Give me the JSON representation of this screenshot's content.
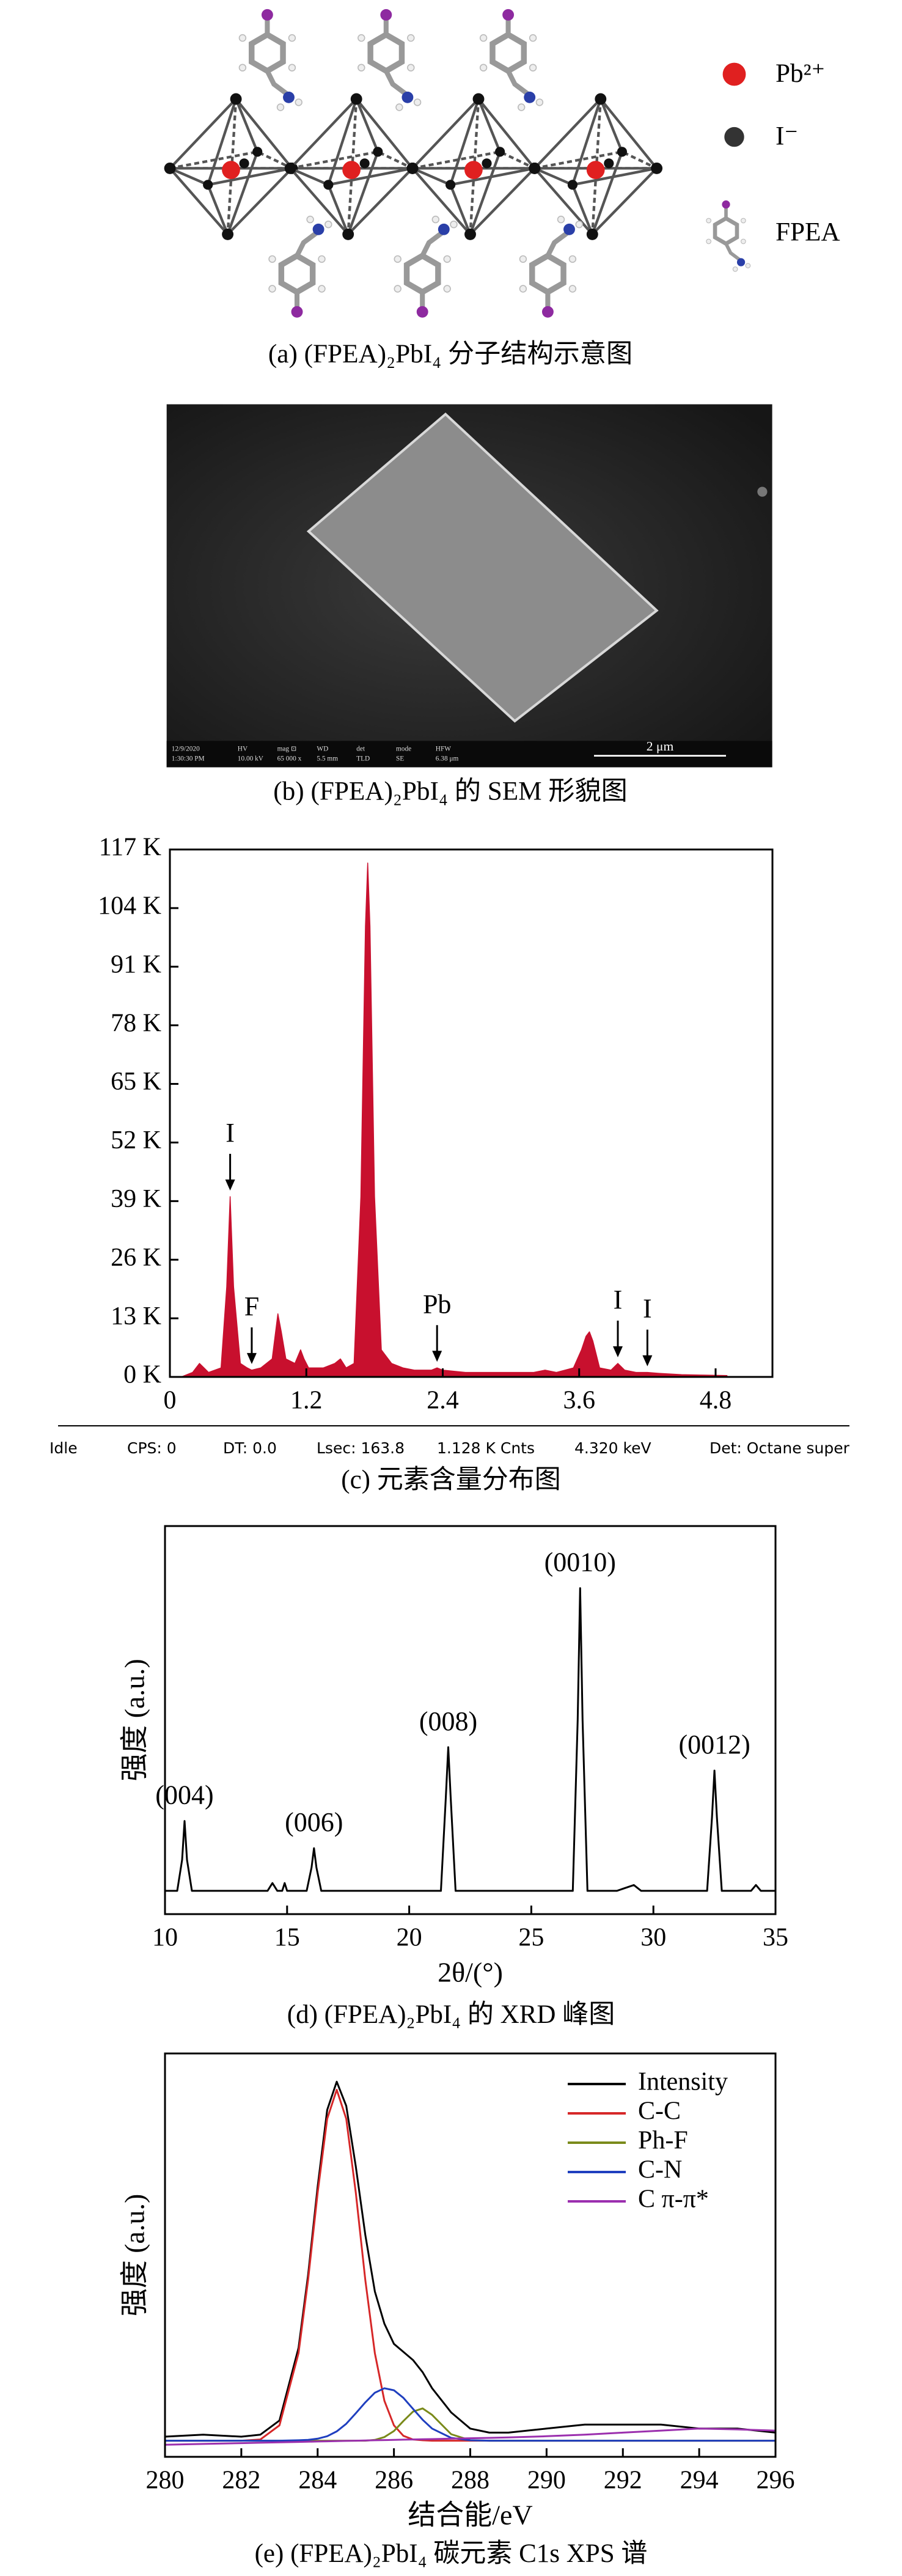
{
  "panel_a": {
    "legend": [
      "Pb²⁺",
      "I⁻",
      "FPEA"
    ],
    "caption": "(a) (FPEA)₂PbI₄ 分子结构示意图"
  },
  "panel_b": {
    "scale_bar": "2 μm",
    "info_bar": [
      "12/9/2020",
      "1:30:30 PM",
      "HV",
      "10.00 kV",
      "mag ⊡",
      "65 000 x",
      "WD",
      "5.5 mm",
      "det",
      "TLD",
      "mode",
      "SE",
      "HFW",
      "6.38 μm"
    ],
    "caption": "(b) (FPEA)₂PbI₄ 的 SEM 形貌图"
  },
  "chart_data": [
    {
      "type": "area",
      "color": "#c8102e",
      "x": [
        0.1,
        0.2,
        0.26,
        0.3,
        0.34,
        0.45,
        0.5,
        0.53,
        0.56,
        0.62,
        0.68,
        0.72,
        0.8,
        0.9,
        0.95,
        0.98,
        1.02,
        1.1,
        1.15,
        1.18,
        1.22,
        1.35,
        1.45,
        1.5,
        1.55,
        1.62,
        1.68,
        1.72,
        1.74,
        1.76,
        1.8,
        1.86,
        1.95,
        2.05,
        2.15,
        2.3,
        2.35,
        2.4,
        2.6,
        2.9,
        3.2,
        3.3,
        3.4,
        3.55,
        3.62,
        3.66,
        3.69,
        3.72,
        3.78,
        3.88,
        3.94,
        4.0,
        4.1,
        4.2,
        4.3,
        4.5,
        4.7,
        4.9
      ],
      "values": [
        0,
        1,
        3,
        2,
        1,
        2,
        20,
        40,
        20,
        3,
        2,
        1.5,
        2,
        4,
        14,
        10,
        4,
        3,
        6,
        4,
        2,
        2,
        3,
        4,
        2,
        3,
        40,
        100,
        114,
        100,
        40,
        6,
        3,
        2,
        1.5,
        1.5,
        2,
        1.5,
        1,
        1,
        1,
        1.5,
        1,
        2,
        6,
        9,
        10,
        8,
        2,
        1.5,
        3,
        1.5,
        1,
        1,
        0.8,
        0.5,
        0.4,
        0.3
      ],
      "xlim": [
        0,
        5.3
      ],
      "xticks": [
        0,
        1.2,
        2.4,
        3.6,
        4.8
      ],
      "ylim": [
        0,
        117
      ],
      "yticks": [
        {
          "value": 0,
          "label": "0 K"
        },
        {
          "value": 13,
          "label": "13 K"
        },
        {
          "value": 26,
          "label": "26 K"
        },
        {
          "value": 39,
          "label": "39 K"
        },
        {
          "value": 52,
          "label": "52 K"
        },
        {
          "value": 65,
          "label": "65 K"
        },
        {
          "value": 78,
          "label": "78 K"
        },
        {
          "value": 91,
          "label": "91 K"
        },
        {
          "value": 104,
          "label": "104 K"
        },
        {
          "value": 117,
          "label": "117 K"
        }
      ],
      "annotations": [
        {
          "text": "I",
          "x": 0.53
        },
        {
          "text": "F",
          "x": 0.72
        },
        {
          "text": "Pb",
          "x": 2.35
        },
        {
          "text": "I",
          "x": 3.94
        },
        {
          "text": "I",
          "x": 4.2
        }
      ],
      "status_bar": [
        "Idle",
        "CPS: 0",
        "DT: 0.0",
        "Lsec: 163.8",
        "1.128 K Cnts",
        "4.320 keV",
        "Det: Octane super"
      ],
      "caption": "(c) 元素含量分布图"
    },
    {
      "type": "line",
      "color": "#000000",
      "xlabel": "2θ/(°)",
      "ylabel": "强度 (a.u.)",
      "x": [
        10,
        10.5,
        10.7,
        10.8,
        10.9,
        11.1,
        12,
        13,
        14.2,
        14.4,
        14.6,
        14.8,
        14.9,
        15,
        15.8,
        16.0,
        16.1,
        16.2,
        16.4,
        17,
        19,
        21.3,
        21.5,
        21.6,
        21.7,
        21.9,
        23,
        25,
        26.7,
        26.9,
        27.0,
        27.1,
        27.3,
        28.5,
        29.2,
        29.5,
        31,
        32.2,
        32.4,
        32.5,
        32.6,
        32.8,
        34,
        34.2,
        34.4,
        35
      ],
      "values": [
        6,
        6,
        14,
        24,
        14,
        6,
        6,
        6,
        6,
        8,
        6,
        6,
        8,
        6,
        6,
        12,
        17,
        12,
        6,
        6,
        6,
        6,
        30,
        43,
        30,
        6,
        6,
        6,
        6,
        50,
        84,
        50,
        6,
        6,
        7.5,
        6,
        6,
        6,
        25,
        37,
        25,
        6,
        6,
        7.5,
        6,
        6
      ],
      "xlim": [
        10,
        35
      ],
      "xticks": [
        10,
        15,
        20,
        25,
        30,
        35
      ],
      "ylim": [
        0,
        100
      ],
      "annotations": [
        {
          "text": "(004)",
          "x": 10.8
        },
        {
          "text": "(006)",
          "x": 16.1
        },
        {
          "text": "(008)",
          "x": 21.6
        },
        {
          "text": "(0010)",
          "x": 27.0
        },
        {
          "text": "(0012)",
          "x": 32.5
        }
      ],
      "caption": "(d) (FPEA)₂PbI₄ 的 XRD 峰图"
    },
    {
      "type": "line",
      "xlabel": "结合能/eV",
      "ylabel": "强度 (a.u.)",
      "legend": "upper right",
      "x": [
        280,
        281,
        282,
        282.5,
        283,
        283.5,
        283.75,
        284,
        284.25,
        284.5,
        284.75,
        285,
        285.25,
        285.5,
        285.75,
        286,
        286.25,
        286.5,
        286.75,
        287,
        287.5,
        288,
        288.5,
        289,
        290,
        291,
        292,
        293,
        294,
        295,
        296
      ],
      "series": [
        {
          "name": "Intensity",
          "color": "#000000",
          "values": [
            5,
            5.5,
            5,
            5.5,
            9,
            27,
            45,
            67,
            86,
            93,
            87,
            72,
            55,
            41,
            33,
            28,
            26,
            24,
            21,
            17,
            11,
            7,
            6,
            6,
            7,
            8,
            8,
            8,
            7,
            7,
            6
          ]
        },
        {
          "name": "C-C",
          "color": "#d62728",
          "values": [
            4,
            4,
            4,
            4.3,
            7.8,
            25.7,
            43.8,
            65.5,
            83.8,
            91,
            83.8,
            65.5,
            43.8,
            25.7,
            13.9,
            7.8,
            5.2,
            4.3,
            4.1,
            4,
            4,
            4,
            4,
            4,
            4,
            4,
            4,
            4,
            4,
            4,
            4
          ]
        },
        {
          "name": "Ph-F",
          "color": "#7a8a1a",
          "values": [
            4,
            4,
            4,
            4,
            4,
            4,
            4,
            4,
            4,
            4,
            4,
            4,
            4,
            4.2,
            4.9,
            6.4,
            8.9,
            11.2,
            12,
            10.4,
            5.6,
            4.1,
            4,
            4,
            4,
            4,
            4,
            4,
            4,
            4,
            4
          ]
        },
        {
          "name": "C-N",
          "color": "#1f3fbf",
          "values": [
            4,
            4,
            4,
            4,
            4,
            4.1,
            4.2,
            4.5,
            5.1,
            6.3,
            8.2,
            10.8,
            13.5,
            15.9,
            17,
            16.5,
            14.6,
            11.9,
            9.2,
            7,
            4.7,
            4.1,
            4,
            4,
            4,
            4,
            4,
            4,
            4,
            4,
            4
          ]
        },
        {
          "name": "C π-π*",
          "color": "#9b2fae",
          "values": [
            3,
            3.2,
            3.4,
            3.5,
            3.6,
            3.7,
            3.75,
            3.8,
            3.85,
            3.9,
            3.95,
            4,
            4.05,
            4.1,
            4.15,
            4.2,
            4.25,
            4.3,
            4.35,
            4.4,
            4.5,
            4.6,
            4.7,
            4.8,
            5.1,
            5.5,
            6,
            6.5,
            7,
            6.8,
            6.5
          ]
        }
      ],
      "xlim": [
        280,
        296
      ],
      "xticks": [
        280,
        282,
        284,
        286,
        288,
        290,
        292,
        294,
        296
      ],
      "ylim": [
        0,
        100
      ],
      "caption": "(e) (FPEA)₂PbI₄ 碳元素 C1s XPS 谱"
    }
  ]
}
